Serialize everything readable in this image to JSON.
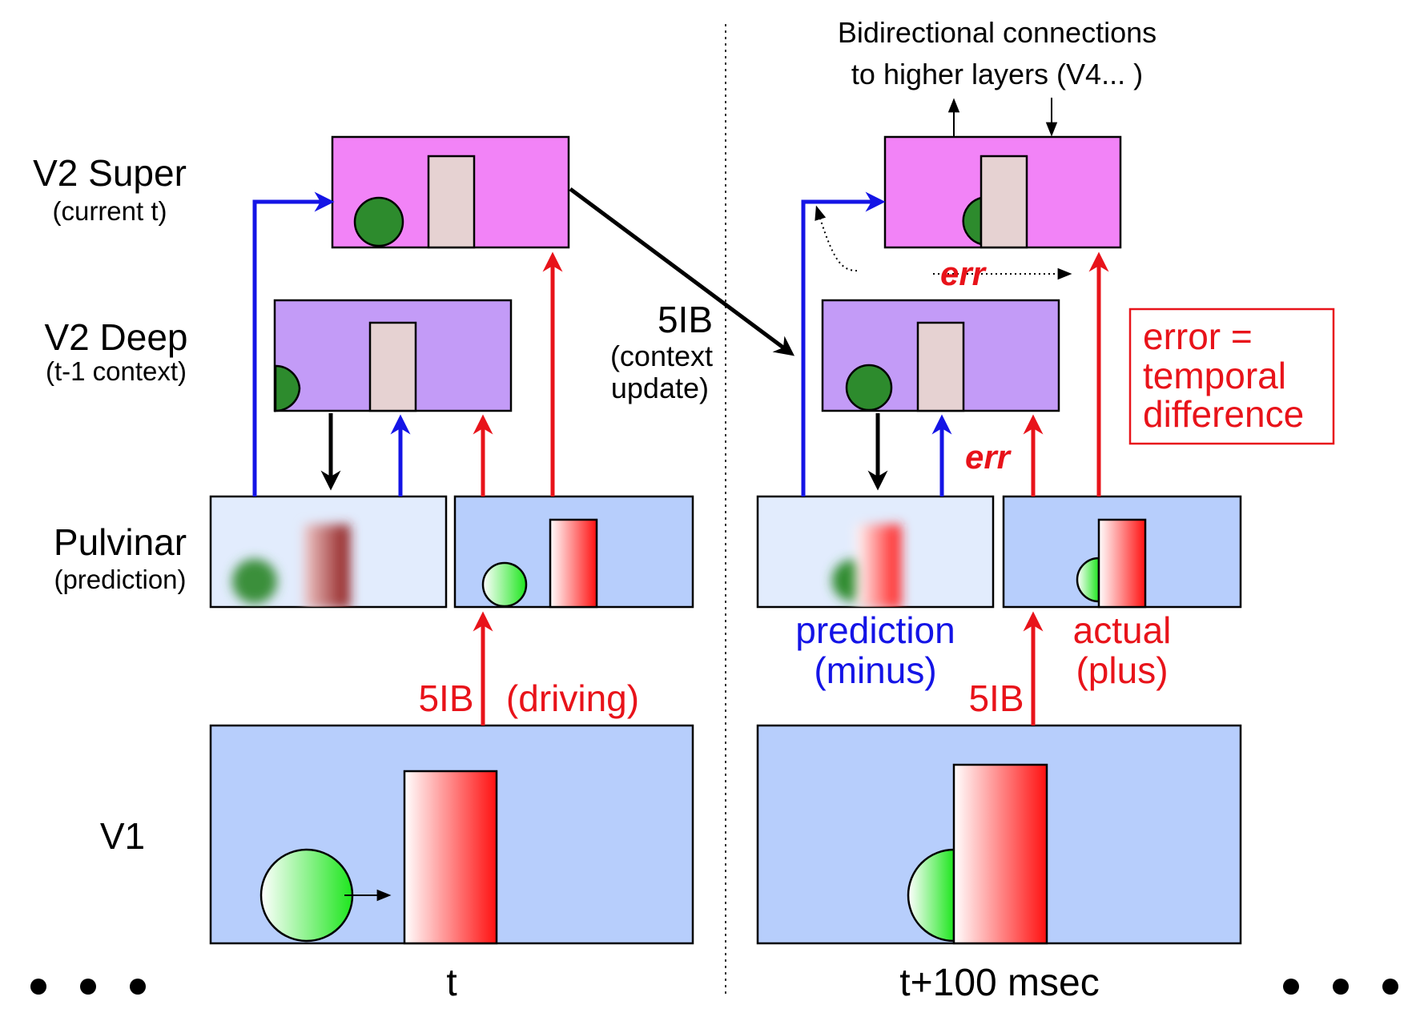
{
  "layers": {
    "v2_super": {
      "title": "V2 Super",
      "subtitle": "(current t)"
    },
    "v2_deep": {
      "title": "V2 Deep",
      "subtitle": "(t-1 context)"
    },
    "pulvinar": {
      "title": "Pulvinar",
      "subtitle": "(prediction)"
    },
    "v1": {
      "title": "V1"
    }
  },
  "labels": {
    "context_update_line1": "5IB",
    "context_update_line2": "(context",
    "context_update_line3": "update)",
    "driving_5ib_left": "5IB",
    "driving": "(driving)",
    "driving_5ib_right": "5IB",
    "bidirectional_line1": "Bidirectional connections",
    "bidirectional_line2": "to higher layers (V4... )",
    "err_top": "err",
    "err_mid": "err",
    "error_box_line1": "error =",
    "error_box_line2": "temporal",
    "error_box_line3": "difference",
    "prediction_line1": "prediction",
    "prediction_line2": "(minus)",
    "actual_line1": "actual",
    "actual_line2": "(plus)",
    "time_left": "t",
    "time_right": "t+100 msec"
  },
  "colors": {
    "super_fill": "#f283f7",
    "deep_fill": "#c39bf7",
    "pulvinar_pred_fill": "#e2ecfd",
    "pulvinar_actual_fill": "#b7cefc",
    "v1_fill": "#b7cefc",
    "ball_dark": "#2d8b2d",
    "bar_light": "#e6d2d2",
    "red": "#e8131a",
    "blue": "#1414e6"
  }
}
